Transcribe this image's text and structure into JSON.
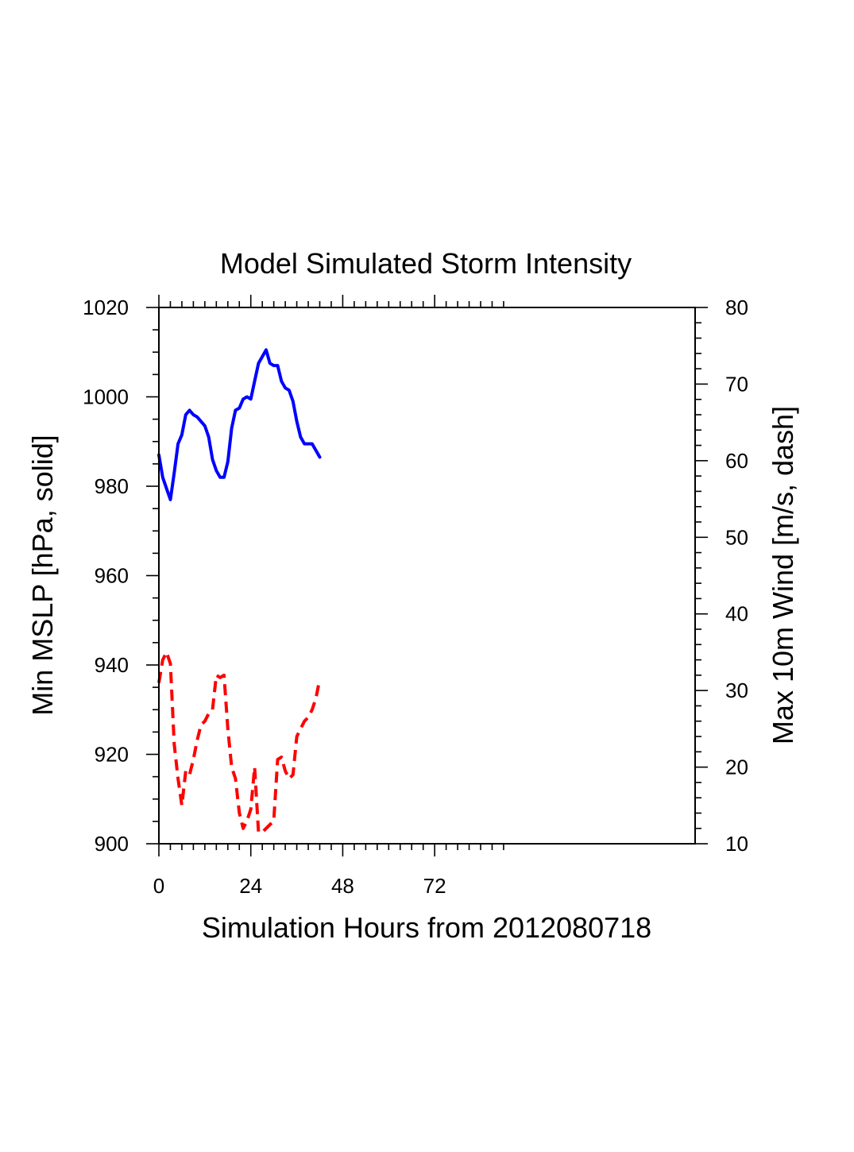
{
  "chart_data": {
    "type": "line",
    "title": "Model Simulated Storm Intensity",
    "xlabel": "Simulation Hours from 2012080718",
    "ylabel_left": "Min MSLP  [hPa, solid]",
    "ylabel_right": "Max 10m Wind  [m/s, dash]",
    "xlim": [
      0,
      140
    ],
    "ylim_left": [
      900,
      1020
    ],
    "ylim_right": [
      10,
      80
    ],
    "x_ticks": [
      0,
      24,
      48,
      72
    ],
    "y_ticks_left": [
      900,
      920,
      940,
      960,
      980,
      1000,
      1020
    ],
    "y_ticks_right": [
      10,
      20,
      30,
      40,
      50,
      60,
      70,
      80
    ],
    "grid": false,
    "series": [
      {
        "name": "Min MSLP",
        "axis": "left",
        "style": "solid",
        "color": "#0000ff",
        "x": [
          0,
          1,
          2,
          3,
          4,
          5,
          6,
          7,
          8,
          9,
          10,
          11,
          12,
          13,
          14,
          15,
          16,
          17,
          18,
          19,
          20,
          21,
          22,
          23,
          24,
          25,
          26,
          27,
          28,
          29,
          30,
          31,
          32,
          33,
          34,
          35,
          36,
          37,
          38,
          39,
          40,
          41,
          42
        ],
        "values": [
          987,
          982,
          979.5,
          977,
          983,
          989.5,
          991.5,
          996,
          997,
          996,
          995.5,
          994.5,
          993.5,
          991,
          986,
          983.5,
          982,
          982,
          985.5,
          993,
          997,
          997.5,
          999.5,
          1000,
          999.5,
          1003.5,
          1007.5,
          1009,
          1010.5,
          1007.5,
          1007,
          1007,
          1003.5,
          1002,
          1001.5,
          999,
          994.5,
          991,
          989.5,
          989.5,
          989.5,
          988,
          986.5
        ]
      },
      {
        "name": "Max 10m Wind",
        "axis": "right",
        "style": "dashed",
        "color": "#ff0000",
        "x": [
          0,
          1,
          2,
          3,
          4,
          5,
          6,
          7,
          8,
          9,
          10,
          11,
          12,
          13,
          14,
          15,
          16,
          17,
          18,
          19,
          20,
          21,
          22,
          23,
          24,
          25,
          26,
          27,
          28,
          29,
          30,
          31,
          32,
          33,
          34,
          35,
          36,
          37,
          38,
          39,
          40,
          41,
          42
        ],
        "values": [
          31,
          34,
          35,
          33.5,
          23,
          18.5,
          15,
          19.5,
          19,
          21,
          23.5,
          25.5,
          26,
          27,
          27.5,
          32,
          31.7,
          32,
          25,
          20,
          18.5,
          14,
          12,
          13,
          14.5,
          20,
          11.5,
          11.5,
          12,
          12.5,
          13,
          21,
          21.3,
          19.5,
          18.5,
          19,
          24,
          25,
          26,
          26.5,
          27.5,
          29,
          31.5
        ]
      }
    ]
  }
}
